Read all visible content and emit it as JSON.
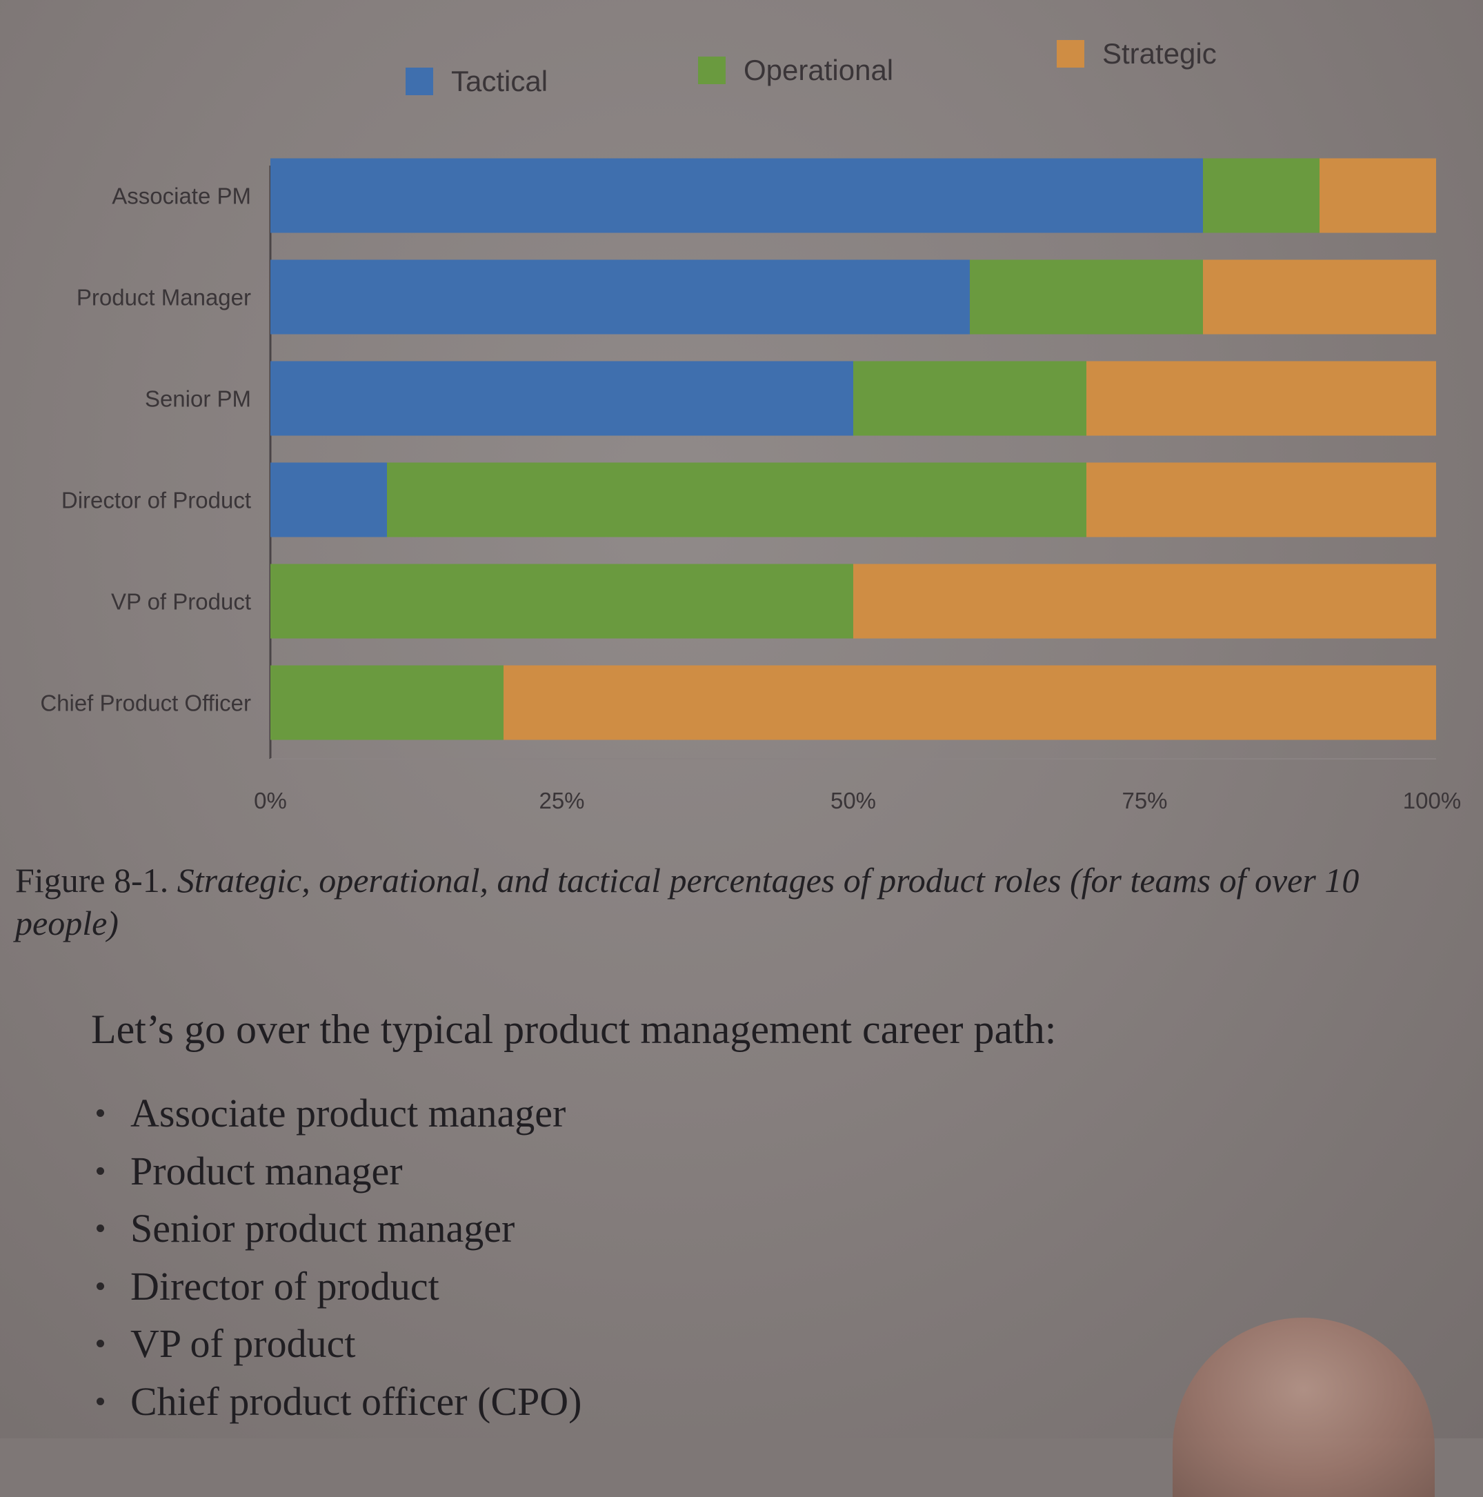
{
  "chart_data": {
    "type": "bar",
    "orientation": "horizontal",
    "stacked": true,
    "title": "",
    "xlabel": "",
    "ylabel": "",
    "categories": [
      "Associate PM",
      "Product Manager",
      "Senior PM",
      "Director of Product",
      "VP of Product",
      "Chief Product Officer"
    ],
    "series": [
      {
        "name": "Tactical",
        "color": "#3f6fae",
        "values": [
          80,
          60,
          50,
          10,
          0,
          0
        ]
      },
      {
        "name": "Operational",
        "color": "#6a9a3f",
        "values": [
          10,
          20,
          20,
          60,
          50,
          20
        ]
      },
      {
        "name": "Strategic",
        "color": "#cf8d44",
        "values": [
          10,
          20,
          30,
          30,
          50,
          80
        ]
      }
    ],
    "xlim": [
      0,
      100
    ],
    "xticks": [
      "0%",
      "25%",
      "50%",
      "75%",
      "100%"
    ],
    "legend_position": "top",
    "grid": false
  },
  "caption": {
    "number": "Figure 8-1.",
    "text": "Strategic, operational, and tactical percentages of product roles (for teams of over 10 people)"
  },
  "body": {
    "intro": "Let’s go over the typical product management career path:",
    "career_path": [
      "Associate product manager",
      "Product manager",
      "Senior product manager",
      "Director of product",
      "VP of product",
      "Chief product officer (CPO)"
    ]
  }
}
